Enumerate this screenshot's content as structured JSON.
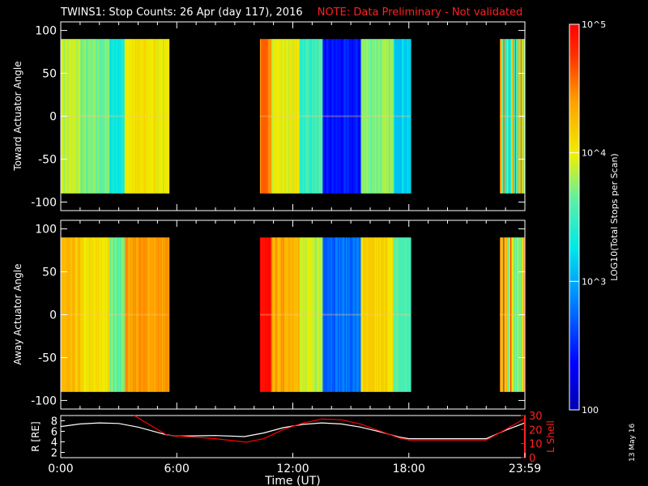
{
  "title": "TWINS1: Stop Counts: 26 Apr (day 117), 2016",
  "note": "NOTE: Data Preliminary - Not validated",
  "stamp": "13 May 16",
  "colorbar": {
    "label": "LOG10(Total Stops per Scan)",
    "ticks": [
      {
        "label": "10^5",
        "value": 100000
      },
      {
        "label": "10^4",
        "value": 10000
      },
      {
        "label": "10^3",
        "value": 1000
      },
      {
        "label": "100",
        "value": 100
      }
    ],
    "range": [
      100,
      100000
    ],
    "scale": "log"
  },
  "chart_data": [
    {
      "type": "heatmap",
      "ylabel": "Toward Actuator Angle",
      "ylim": [
        -110,
        110
      ],
      "yticks": [
        100,
        50,
        0,
        -50,
        -100
      ],
      "xlim": [
        0,
        24
      ],
      "data_ranges_ut": [
        [
          0.0,
          5.6
        ],
        [
          10.3,
          18.1
        ],
        [
          22.7,
          24.0
        ]
      ]
    },
    {
      "type": "heatmap",
      "ylabel": "Away Actuator Angle",
      "ylim": [
        -110,
        110
      ],
      "yticks": [
        100,
        50,
        0,
        -50,
        -100
      ],
      "xlim": [
        0,
        24
      ],
      "data_ranges_ut": [
        [
          0.0,
          5.6
        ],
        [
          10.3,
          18.1
        ],
        [
          22.7,
          24.0
        ]
      ]
    },
    {
      "type": "line",
      "xlabel": "Time (UT)",
      "xticks": [
        "0:00",
        "6:00",
        "12:00",
        "18:00",
        "23:59"
      ],
      "xlim": [
        0,
        24
      ],
      "ylabel": "R [RE]",
      "yticks_left": [
        8,
        6,
        4,
        2
      ],
      "ylim": [
        1,
        9
      ],
      "ylabel_right": "L Shell",
      "yticks_right": [
        30,
        20,
        10,
        0
      ],
      "ylim_right": [
        0,
        30
      ],
      "series": [
        {
          "name": "R [RE]",
          "color": "#ffffff",
          "x": [
            0,
            1,
            2,
            3,
            4,
            5,
            5.5,
            6,
            8,
            9.5,
            10.5,
            11.5,
            12.5,
            13.5,
            14.5,
            15.5,
            16.5,
            17.5,
            18,
            19,
            20,
            21,
            22,
            23,
            24
          ],
          "y": [
            6.9,
            7.4,
            7.6,
            7.5,
            6.8,
            5.8,
            5.3,
            5.1,
            5.2,
            5.0,
            5.7,
            6.7,
            7.3,
            7.6,
            7.4,
            6.8,
            5.9,
            4.9,
            4.6,
            4.6,
            4.6,
            4.6,
            4.6,
            6.2,
            7.6
          ]
        },
        {
          "name": "L Shell",
          "color": "#ff0000",
          "x": [
            3.8,
            5.5,
            6.5,
            8,
            9.6,
            10.5,
            11.5,
            12.5,
            13.5,
            14.5,
            15.5,
            16.5,
            17.5,
            18,
            20,
            21,
            22,
            23,
            24
          ],
          "y": [
            30,
            16,
            15,
            13.5,
            11,
            13.5,
            20,
            24.5,
            27.5,
            27,
            24,
            19,
            14,
            12.5,
            12.5,
            12.5,
            12.5,
            20,
            28
          ]
        }
      ]
    }
  ]
}
